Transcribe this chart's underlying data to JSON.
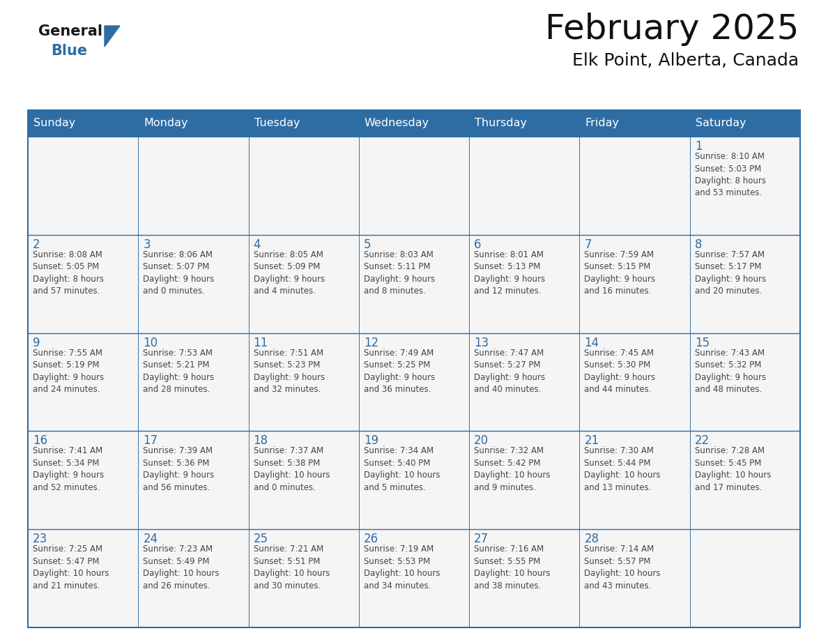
{
  "title": "February 2025",
  "subtitle": "Elk Point, Alberta, Canada",
  "header_bg": "#2E6DA4",
  "header_text_color": "#FFFFFF",
  "cell_bg": "#F5F5F5",
  "border_color": "#2E6DA4",
  "text_color": "#444444",
  "day_number_color": "#2E6DA4",
  "days_of_week": [
    "Sunday",
    "Monday",
    "Tuesday",
    "Wednesday",
    "Thursday",
    "Friday",
    "Saturday"
  ],
  "weeks": [
    [
      {
        "day": "",
        "info": ""
      },
      {
        "day": "",
        "info": ""
      },
      {
        "day": "",
        "info": ""
      },
      {
        "day": "",
        "info": ""
      },
      {
        "day": "",
        "info": ""
      },
      {
        "day": "",
        "info": ""
      },
      {
        "day": "1",
        "info": "Sunrise: 8:10 AM\nSunset: 5:03 PM\nDaylight: 8 hours\nand 53 minutes."
      }
    ],
    [
      {
        "day": "2",
        "info": "Sunrise: 8:08 AM\nSunset: 5:05 PM\nDaylight: 8 hours\nand 57 minutes."
      },
      {
        "day": "3",
        "info": "Sunrise: 8:06 AM\nSunset: 5:07 PM\nDaylight: 9 hours\nand 0 minutes."
      },
      {
        "day": "4",
        "info": "Sunrise: 8:05 AM\nSunset: 5:09 PM\nDaylight: 9 hours\nand 4 minutes."
      },
      {
        "day": "5",
        "info": "Sunrise: 8:03 AM\nSunset: 5:11 PM\nDaylight: 9 hours\nand 8 minutes."
      },
      {
        "day": "6",
        "info": "Sunrise: 8:01 AM\nSunset: 5:13 PM\nDaylight: 9 hours\nand 12 minutes."
      },
      {
        "day": "7",
        "info": "Sunrise: 7:59 AM\nSunset: 5:15 PM\nDaylight: 9 hours\nand 16 minutes."
      },
      {
        "day": "8",
        "info": "Sunrise: 7:57 AM\nSunset: 5:17 PM\nDaylight: 9 hours\nand 20 minutes."
      }
    ],
    [
      {
        "day": "9",
        "info": "Sunrise: 7:55 AM\nSunset: 5:19 PM\nDaylight: 9 hours\nand 24 minutes."
      },
      {
        "day": "10",
        "info": "Sunrise: 7:53 AM\nSunset: 5:21 PM\nDaylight: 9 hours\nand 28 minutes."
      },
      {
        "day": "11",
        "info": "Sunrise: 7:51 AM\nSunset: 5:23 PM\nDaylight: 9 hours\nand 32 minutes."
      },
      {
        "day": "12",
        "info": "Sunrise: 7:49 AM\nSunset: 5:25 PM\nDaylight: 9 hours\nand 36 minutes."
      },
      {
        "day": "13",
        "info": "Sunrise: 7:47 AM\nSunset: 5:27 PM\nDaylight: 9 hours\nand 40 minutes."
      },
      {
        "day": "14",
        "info": "Sunrise: 7:45 AM\nSunset: 5:30 PM\nDaylight: 9 hours\nand 44 minutes."
      },
      {
        "day": "15",
        "info": "Sunrise: 7:43 AM\nSunset: 5:32 PM\nDaylight: 9 hours\nand 48 minutes."
      }
    ],
    [
      {
        "day": "16",
        "info": "Sunrise: 7:41 AM\nSunset: 5:34 PM\nDaylight: 9 hours\nand 52 minutes."
      },
      {
        "day": "17",
        "info": "Sunrise: 7:39 AM\nSunset: 5:36 PM\nDaylight: 9 hours\nand 56 minutes."
      },
      {
        "day": "18",
        "info": "Sunrise: 7:37 AM\nSunset: 5:38 PM\nDaylight: 10 hours\nand 0 minutes."
      },
      {
        "day": "19",
        "info": "Sunrise: 7:34 AM\nSunset: 5:40 PM\nDaylight: 10 hours\nand 5 minutes."
      },
      {
        "day": "20",
        "info": "Sunrise: 7:32 AM\nSunset: 5:42 PM\nDaylight: 10 hours\nand 9 minutes."
      },
      {
        "day": "21",
        "info": "Sunrise: 7:30 AM\nSunset: 5:44 PM\nDaylight: 10 hours\nand 13 minutes."
      },
      {
        "day": "22",
        "info": "Sunrise: 7:28 AM\nSunset: 5:45 PM\nDaylight: 10 hours\nand 17 minutes."
      }
    ],
    [
      {
        "day": "23",
        "info": "Sunrise: 7:25 AM\nSunset: 5:47 PM\nDaylight: 10 hours\nand 21 minutes."
      },
      {
        "day": "24",
        "info": "Sunrise: 7:23 AM\nSunset: 5:49 PM\nDaylight: 10 hours\nand 26 minutes."
      },
      {
        "day": "25",
        "info": "Sunrise: 7:21 AM\nSunset: 5:51 PM\nDaylight: 10 hours\nand 30 minutes."
      },
      {
        "day": "26",
        "info": "Sunrise: 7:19 AM\nSunset: 5:53 PM\nDaylight: 10 hours\nand 34 minutes."
      },
      {
        "day": "27",
        "info": "Sunrise: 7:16 AM\nSunset: 5:55 PM\nDaylight: 10 hours\nand 38 minutes."
      },
      {
        "day": "28",
        "info": "Sunrise: 7:14 AM\nSunset: 5:57 PM\nDaylight: 10 hours\nand 43 minutes."
      },
      {
        "day": "",
        "info": ""
      }
    ]
  ],
  "logo_color_general": "#1A1A1A",
  "logo_color_blue": "#2E6DA4",
  "logo_triangle_color": "#2E6DA4",
  "fig_width": 11.88,
  "fig_height": 9.18,
  "dpi": 100
}
